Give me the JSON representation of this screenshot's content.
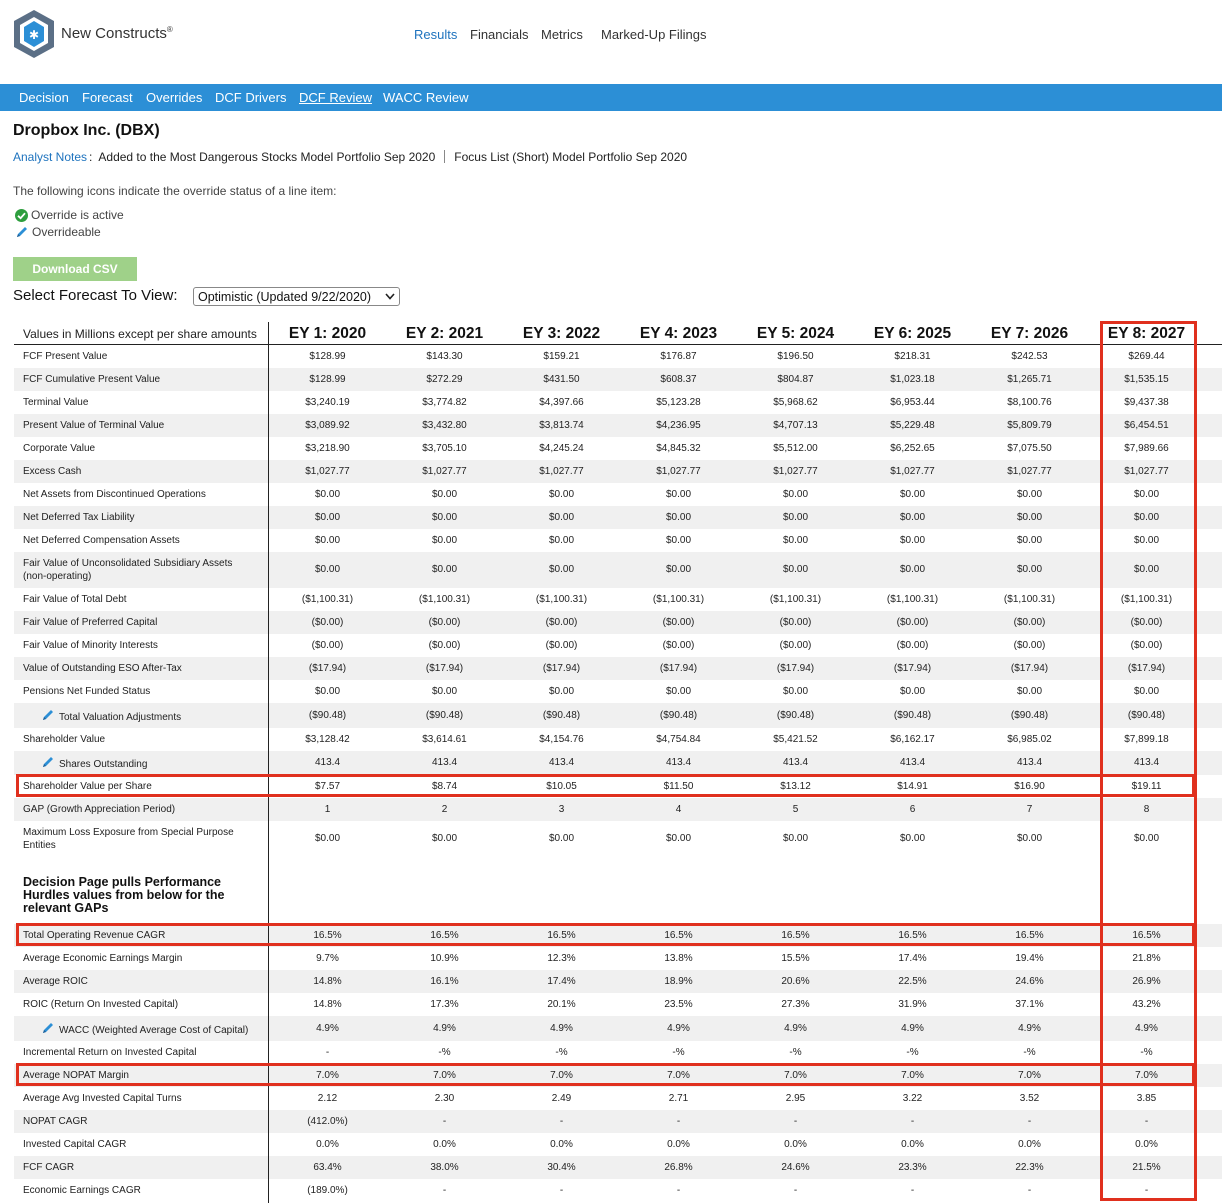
{
  "brand": {
    "name": "New Constructs",
    "reg": "®"
  },
  "top_nav": [
    "Results",
    "Financials",
    "Metrics",
    "Marked-Up Filings"
  ],
  "sub_nav": [
    "Decision",
    "Forecast",
    "Overrides",
    "DCF Drivers",
    "DCF Review",
    "WACC Review"
  ],
  "company": "Dropbox Inc. (DBX)",
  "notes": {
    "link": "Analyst Notes",
    "colon": ":",
    "note1": "Added to the Most Dangerous Stocks Model Portfolio Sep 2020",
    "note2": "Focus List (Short) Model Portfolio Sep 2020"
  },
  "legend": {
    "intro": "The following icons indicate the override status of a line item:",
    "active": "Override is active",
    "overrideable": "Overrideable"
  },
  "download_label": "Download CSV",
  "select_label": "Select Forecast To View:",
  "select_value": "Optimistic (Updated 9/22/2020)",
  "table": {
    "header_label": "Values in Millions except per share amounts",
    "columns": [
      "EY 1: 2020",
      "EY 2: 2021",
      "EY 3: 2022",
      "EY 4: 2023",
      "EY 5: 2024",
      "EY 6: 2025",
      "EY 7: 2026",
      "EY 8: 2027"
    ],
    "section_title": "Decision Page pulls Performance Hurdles values from below for the relevant GAPs",
    "rows": [
      {
        "label": "FCF Present Value",
        "values": [
          "$128.99",
          "$143.30",
          "$159.21",
          "$176.87",
          "$196.50",
          "$218.31",
          "$242.53",
          "$269.44"
        ]
      },
      {
        "label": "FCF Cumulative Present Value",
        "values": [
          "$128.99",
          "$272.29",
          "$431.50",
          "$608.37",
          "$804.87",
          "$1,023.18",
          "$1,265.71",
          "$1,535.15"
        ]
      },
      {
        "label": "Terminal Value",
        "values": [
          "$3,240.19",
          "$3,774.82",
          "$4,397.66",
          "$5,123.28",
          "$5,968.62",
          "$6,953.44",
          "$8,100.76",
          "$9,437.38"
        ]
      },
      {
        "label": "Present Value of Terminal Value",
        "values": [
          "$3,089.92",
          "$3,432.80",
          "$3,813.74",
          "$4,236.95",
          "$4,707.13",
          "$5,229.48",
          "$5,809.79",
          "$6,454.51"
        ]
      },
      {
        "label": "Corporate Value",
        "values": [
          "$3,218.90",
          "$3,705.10",
          "$4,245.24",
          "$4,845.32",
          "$5,512.00",
          "$6,252.65",
          "$7,075.50",
          "$7,989.66"
        ]
      },
      {
        "label": "Excess Cash",
        "values": [
          "$1,027.77",
          "$1,027.77",
          "$1,027.77",
          "$1,027.77",
          "$1,027.77",
          "$1,027.77",
          "$1,027.77",
          "$1,027.77"
        ]
      },
      {
        "label": "Net Assets from Discontinued Operations",
        "values": [
          "$0.00",
          "$0.00",
          "$0.00",
          "$0.00",
          "$0.00",
          "$0.00",
          "$0.00",
          "$0.00"
        ]
      },
      {
        "label": "Net Deferred Tax Liability",
        "values": [
          "$0.00",
          "$0.00",
          "$0.00",
          "$0.00",
          "$0.00",
          "$0.00",
          "$0.00",
          "$0.00"
        ]
      },
      {
        "label": "Net Deferred Compensation Assets",
        "values": [
          "$0.00",
          "$0.00",
          "$0.00",
          "$0.00",
          "$0.00",
          "$0.00",
          "$0.00",
          "$0.00"
        ]
      },
      {
        "label": "Fair Value of Unconsolidated Subsidiary Assets",
        "label2": "(non-operating)",
        "values": [
          "$0.00",
          "$0.00",
          "$0.00",
          "$0.00",
          "$0.00",
          "$0.00",
          "$0.00",
          "$0.00"
        ]
      },
      {
        "label": "Fair Value of Total Debt",
        "values": [
          "($1,100.31)",
          "($1,100.31)",
          "($1,100.31)",
          "($1,100.31)",
          "($1,100.31)",
          "($1,100.31)",
          "($1,100.31)",
          "($1,100.31)"
        ]
      },
      {
        "label": "Fair Value of Preferred Capital",
        "values": [
          "($0.00)",
          "($0.00)",
          "($0.00)",
          "($0.00)",
          "($0.00)",
          "($0.00)",
          "($0.00)",
          "($0.00)"
        ]
      },
      {
        "label": "Fair Value of Minority Interests",
        "values": [
          "($0.00)",
          "($0.00)",
          "($0.00)",
          "($0.00)",
          "($0.00)",
          "($0.00)",
          "($0.00)",
          "($0.00)"
        ]
      },
      {
        "label": "Value of Outstanding ESO After-Tax",
        "values": [
          "($17.94)",
          "($17.94)",
          "($17.94)",
          "($17.94)",
          "($17.94)",
          "($17.94)",
          "($17.94)",
          "($17.94)"
        ]
      },
      {
        "label": "Pensions Net Funded Status",
        "values": [
          "$0.00",
          "$0.00",
          "$0.00",
          "$0.00",
          "$0.00",
          "$0.00",
          "$0.00",
          "$0.00"
        ]
      },
      {
        "label": "Total Valuation Adjustments",
        "icon": "pencil-icon",
        "values": [
          "($90.48)",
          "($90.48)",
          "($90.48)",
          "($90.48)",
          "($90.48)",
          "($90.48)",
          "($90.48)",
          "($90.48)"
        ]
      },
      {
        "label": "Shareholder Value",
        "values": [
          "$3,128.42",
          "$3,614.61",
          "$4,154.76",
          "$4,754.84",
          "$5,421.52",
          "$6,162.17",
          "$6,985.02",
          "$7,899.18"
        ]
      },
      {
        "label": "Shares Outstanding",
        "icon": "pencil-icon",
        "values": [
          "413.4",
          "413.4",
          "413.4",
          "413.4",
          "413.4",
          "413.4",
          "413.4",
          "413.4"
        ]
      },
      {
        "label": "Shareholder Value per Share",
        "values": [
          "$7.57",
          "$8.74",
          "$10.05",
          "$11.50",
          "$13.12",
          "$14.91",
          "$16.90",
          "$19.11"
        ]
      },
      {
        "label": "GAP (Growth Appreciation Period)",
        "values": [
          "1",
          "2",
          "3",
          "4",
          "5",
          "6",
          "7",
          "8"
        ]
      },
      {
        "label": "Maximum Loss Exposure from Special Purpose",
        "label2": "Entities",
        "values": [
          "$0.00",
          "$0.00",
          "$0.00",
          "$0.00",
          "$0.00",
          "$0.00",
          "$0.00",
          "$0.00"
        ]
      },
      {
        "label": "Total Operating Revenue CAGR",
        "values": [
          "16.5%",
          "16.5%",
          "16.5%",
          "16.5%",
          "16.5%",
          "16.5%",
          "16.5%",
          "16.5%"
        ]
      },
      {
        "label": "Average Economic Earnings Margin",
        "values": [
          "9.7%",
          "10.9%",
          "12.3%",
          "13.8%",
          "15.5%",
          "17.4%",
          "19.4%",
          "21.8%"
        ]
      },
      {
        "label": "Average ROIC",
        "values": [
          "14.8%",
          "16.1%",
          "17.4%",
          "18.9%",
          "20.6%",
          "22.5%",
          "24.6%",
          "26.9%"
        ]
      },
      {
        "label": "ROIC (Return On Invested Capital)",
        "values": [
          "14.8%",
          "17.3%",
          "20.1%",
          "23.5%",
          "27.3%",
          "31.9%",
          "37.1%",
          "43.2%"
        ]
      },
      {
        "label": "WACC (Weighted Average Cost of Capital)",
        "icon": "pencil-icon",
        "values": [
          "4.9%",
          "4.9%",
          "4.9%",
          "4.9%",
          "4.9%",
          "4.9%",
          "4.9%",
          "4.9%"
        ]
      },
      {
        "label": "Incremental Return on Invested Capital",
        "values": [
          "-",
          "-%",
          "-%",
          "-%",
          "-%",
          "-%",
          "-%",
          "-%"
        ]
      },
      {
        "label": "Average NOPAT Margin",
        "values": [
          "7.0%",
          "7.0%",
          "7.0%",
          "7.0%",
          "7.0%",
          "7.0%",
          "7.0%",
          "7.0%"
        ]
      },
      {
        "label": "Average Avg Invested Capital Turns",
        "values": [
          "2.12",
          "2.30",
          "2.49",
          "2.71",
          "2.95",
          "3.22",
          "3.52",
          "3.85"
        ]
      },
      {
        "label": "NOPAT CAGR",
        "values": [
          "(412.0%)",
          "-",
          "-",
          "-",
          "-",
          "-",
          "-",
          "-"
        ]
      },
      {
        "label": "Invested Capital CAGR",
        "values": [
          "0.0%",
          "0.0%",
          "0.0%",
          "0.0%",
          "0.0%",
          "0.0%",
          "0.0%",
          "0.0%"
        ]
      },
      {
        "label": "FCF CAGR",
        "values": [
          "63.4%",
          "38.0%",
          "30.4%",
          "26.8%",
          "24.6%",
          "23.3%",
          "22.3%",
          "21.5%"
        ]
      },
      {
        "label": "Economic Earnings CAGR",
        "values": [
          "(189.0%)",
          "-",
          "-",
          "-",
          "-",
          "-",
          "-",
          "-"
        ]
      }
    ]
  },
  "colors": {
    "nav_blue": "#2c8fd6",
    "link_blue": "#1e73be",
    "highlight_red": "#e0301e",
    "csv_green": "#9fd189",
    "check_green": "#2e9e3e"
  }
}
